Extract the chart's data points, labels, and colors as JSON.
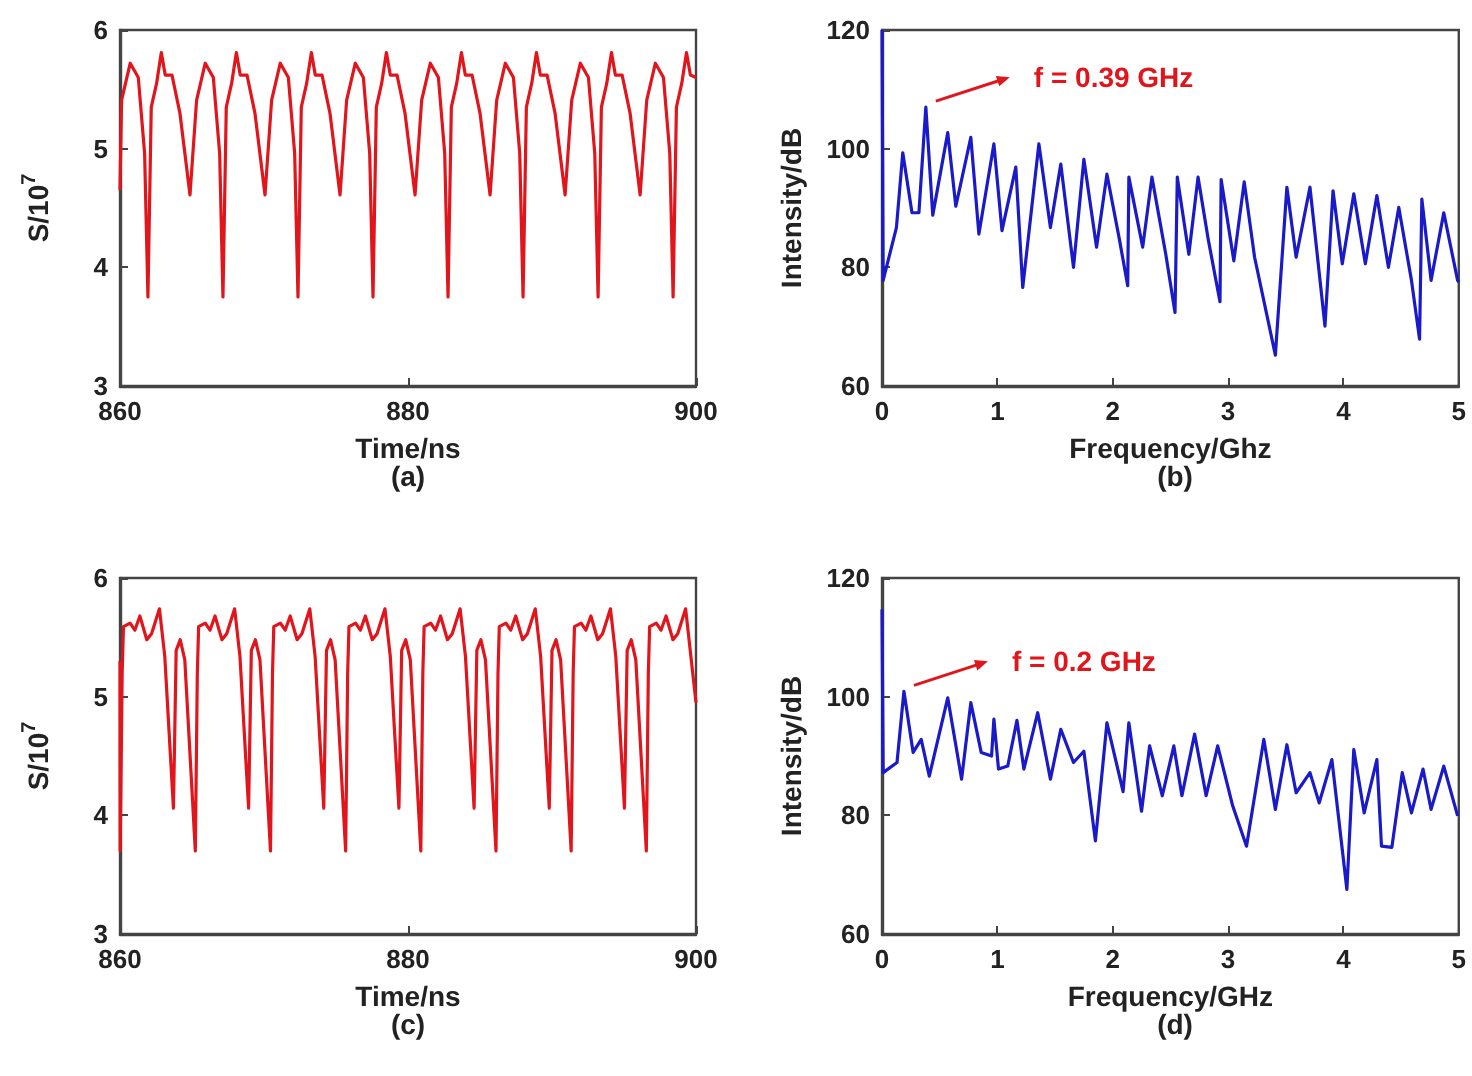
{
  "chart_data": [
    {
      "type": "line",
      "xlabel": "Time/ns",
      "ylabel": "S/10$^{7}$",
      "annotations": [
        "(a)"
      ],
      "xlim": [
        860,
        900
      ],
      "ylim": [
        3,
        6
      ],
      "xticks": [
        860,
        880,
        900
      ],
      "yticks": [
        3,
        4,
        5,
        6
      ],
      "x": [
        860,
        860.11,
        860.71,
        861.27,
        861.71,
        861.94,
        862.17,
        862.54,
        862.87,
        863.14,
        863.61,
        864.16,
        864.86,
        865.32,
        865.92,
        866.48,
        866.92,
        867.15,
        867.38,
        867.75,
        868.08,
        868.35,
        868.82,
        869.37,
        870.07,
        870.53,
        871.13,
        871.69,
        872.13,
        872.36,
        872.59,
        872.96,
        873.29,
        873.56,
        874.03,
        874.58,
        875.28,
        875.74,
        876.34,
        876.9,
        877.34,
        877.57,
        877.8,
        878.17,
        878.5,
        878.77,
        879.24,
        879.79,
        880.49,
        880.95,
        881.55,
        882.11,
        882.55,
        882.78,
        883.01,
        883.38,
        883.71,
        883.98,
        884.45,
        885.0,
        885.7,
        886.16,
        886.76,
        887.32,
        887.76,
        887.99,
        888.22,
        888.59,
        888.92,
        889.19,
        889.66,
        890.21,
        890.91,
        891.37,
        891.97,
        892.53,
        892.97,
        893.2,
        893.43,
        893.8,
        894.13,
        894.4,
        894.87,
        895.42,
        896.12,
        896.58,
        897.18,
        897.74,
        898.18,
        898.41,
        898.64,
        899.01,
        899.34,
        899.61,
        900
      ],
      "series": [
        {
          "color": "#e0161c",
          "values": [
            4.65,
            5.41,
            5.72,
            5.6,
            4.96,
            3.75,
            5.35,
            5.55,
            5.81,
            5.62,
            5.62,
            5.3,
            4.61,
            5.41,
            5.72,
            5.6,
            4.96,
            3.75,
            5.35,
            5.55,
            5.81,
            5.62,
            5.62,
            5.3,
            4.61,
            5.41,
            5.72,
            5.6,
            4.96,
            3.75,
            5.35,
            5.55,
            5.81,
            5.62,
            5.62,
            5.3,
            4.61,
            5.41,
            5.72,
            5.6,
            4.96,
            3.75,
            5.35,
            5.55,
            5.81,
            5.62,
            5.62,
            5.3,
            4.61,
            5.41,
            5.72,
            5.6,
            4.96,
            3.75,
            5.35,
            5.55,
            5.81,
            5.62,
            5.62,
            5.3,
            4.61,
            5.41,
            5.72,
            5.6,
            4.96,
            3.75,
            5.35,
            5.55,
            5.81,
            5.62,
            5.62,
            5.3,
            4.61,
            5.41,
            5.72,
            5.6,
            4.96,
            3.75,
            5.35,
            5.55,
            5.81,
            5.62,
            5.62,
            5.3,
            4.61,
            5.41,
            5.72,
            5.6,
            4.96,
            3.75,
            5.35,
            5.55,
            5.81,
            5.62,
            5.6
          ]
        }
      ]
    },
    {
      "type": "line",
      "xlabel": "Frequency/Ghz",
      "ylabel": "Intensity/dB",
      "annotations": [
        {
          "text": "f = 0.39 GHz",
          "x": 0.38,
          "y": 107
        },
        "(b)"
      ],
      "xlim": [
        0,
        5
      ],
      "ylim": [
        60,
        120
      ],
      "xticks": [
        0,
        1,
        2,
        3,
        4,
        5
      ],
      "yticks": [
        60,
        80,
        100,
        120
      ],
      "x": [
        0,
        0.01,
        0.125,
        0.18,
        0.26,
        0.32,
        0.38,
        0.44,
        0.57,
        0.64,
        0.77,
        0.84,
        0.97,
        1.04,
        1.16,
        1.22,
        1.36,
        1.46,
        1.55,
        1.66,
        1.75,
        1.86,
        1.95,
        2.06,
        2.13,
        2.14,
        2.26,
        2.34,
        2.46,
        2.54,
        2.56,
        2.66,
        2.74,
        2.83,
        2.93,
        2.94,
        3.05,
        3.14,
        3.23,
        3.41,
        3.51,
        3.59,
        3.71,
        3.84,
        3.91,
        3.99,
        4.09,
        4.19,
        4.29,
        4.39,
        4.48,
        4.59,
        4.66,
        4.68,
        4.76,
        4.87,
        4.99,
        5
      ],
      "series": [
        {
          "color": "#1a1ac8",
          "values": [
            120,
            77.8,
            86.7,
            99.3,
            89.2,
            89.2,
            107,
            88.8,
            102.7,
            90.3,
            101.9,
            85.6,
            100.8,
            86.2,
            96.9,
            76.6,
            100.8,
            86.7,
            97.4,
            80.0,
            98.2,
            83.4,
            95.7,
            84.5,
            76.9,
            95.2,
            83.4,
            95.2,
            82.2,
            72.4,
            95.2,
            82.2,
            95.2,
            84.5,
            74.2,
            94.8,
            81.1,
            94.4,
            81.7,
            65.2,
            93.5,
            81.7,
            93.5,
            70.1,
            92.9,
            80.6,
            92.4,
            80.6,
            92.1,
            80.0,
            90.1,
            77.8,
            67.9,
            91.5,
            77.8,
            89.2,
            77.8,
            77.5
          ]
        }
      ]
    },
    {
      "type": "line",
      "xlabel": "Time/ns",
      "ylabel": "S/10$^{7}$",
      "annotations": [
        "(c)"
      ],
      "xlim": [
        860,
        900
      ],
      "ylim": [
        3,
        6
      ],
      "xticks": [
        860,
        880,
        900
      ],
      "yticks": [
        3,
        4,
        5,
        6
      ],
      "x": [
        860,
        860.01,
        860.15,
        860.24,
        860.7,
        861.03,
        861.38,
        861.86,
        862.19,
        862.74,
        863.11,
        863.71,
        863.9,
        864.18,
        864.5,
        865.23,
        865.37,
        865.46,
        865.92,
        866.25,
        866.6,
        867.08,
        867.41,
        867.96,
        868.33,
        868.93,
        869.12,
        869.4,
        869.72,
        870.45,
        870.59,
        870.68,
        871.14,
        871.47,
        871.82,
        872.3,
        872.63,
        873.18,
        873.55,
        874.15,
        874.34,
        874.62,
        874.94,
        875.67,
        875.81,
        875.9,
        876.36,
        876.69,
        877.04,
        877.52,
        877.85,
        878.4,
        878.77,
        879.37,
        879.56,
        879.84,
        880.16,
        880.89,
        881.03,
        881.12,
        881.58,
        881.91,
        882.26,
        882.74,
        883.07,
        883.62,
        883.99,
        884.59,
        884.78,
        885.06,
        885.38,
        886.11,
        886.25,
        886.34,
        886.8,
        887.13,
        887.48,
        887.96,
        888.29,
        888.84,
        889.21,
        889.81,
        890.0,
        890.28,
        890.6,
        891.33,
        891.47,
        891.56,
        892.02,
        892.35,
        892.7,
        893.18,
        893.51,
        894.06,
        894.43,
        895.03,
        895.22,
        895.5,
        895.82,
        896.55,
        896.69,
        896.78,
        897.24,
        897.57,
        897.92,
        898.4,
        898.73,
        899.28,
        900
      ],
      "series": [
        {
          "color": "#e0161c",
          "values": [
            5.3,
            3.7,
            5.2,
            5.59,
            5.62,
            5.56,
            5.68,
            5.48,
            5.53,
            5.74,
            5.34,
            4.06,
            5.39,
            5.48,
            5.31,
            3.7,
            5.2,
            5.59,
            5.62,
            5.56,
            5.68,
            5.48,
            5.53,
            5.74,
            5.34,
            4.06,
            5.39,
            5.48,
            5.31,
            3.7,
            5.2,
            5.59,
            5.62,
            5.56,
            5.68,
            5.48,
            5.53,
            5.74,
            5.34,
            4.06,
            5.39,
            5.48,
            5.31,
            3.7,
            5.2,
            5.59,
            5.62,
            5.56,
            5.68,
            5.48,
            5.53,
            5.74,
            5.34,
            4.06,
            5.39,
            5.48,
            5.31,
            3.7,
            5.2,
            5.59,
            5.62,
            5.56,
            5.68,
            5.48,
            5.53,
            5.74,
            5.34,
            4.06,
            5.39,
            5.48,
            5.31,
            3.7,
            5.2,
            5.59,
            5.62,
            5.56,
            5.68,
            5.48,
            5.53,
            5.74,
            5.34,
            4.06,
            5.39,
            5.48,
            5.31,
            3.7,
            5.2,
            5.59,
            5.62,
            5.56,
            5.68,
            5.48,
            5.53,
            5.74,
            5.34,
            4.06,
            5.39,
            5.48,
            5.31,
            3.7,
            5.2,
            5.59,
            5.62,
            5.56,
            5.68,
            5.48,
            5.53,
            5.74,
            4.95
          ]
        }
      ]
    },
    {
      "type": "line",
      "xlabel": "Frequency/GHz",
      "ylabel": "Intensity/dB",
      "annotations": [
        {
          "text": "f = 0.2 GHz",
          "x": 0.19,
          "y": 100.9
        },
        "(d)"
      ],
      "xlim": [
        0,
        5
      ],
      "ylim": [
        60,
        120
      ],
      "xticks": [
        0,
        1,
        2,
        3,
        4,
        5
      ],
      "yticks": [
        60,
        80,
        100,
        120
      ],
      "x": [
        0,
        0.01,
        0.13,
        0.19,
        0.27,
        0.34,
        0.41,
        0.57,
        0.69,
        0.77,
        0.86,
        0.95,
        0.97,
        1.01,
        1.09,
        1.17,
        1.23,
        1.35,
        1.46,
        1.55,
        1.66,
        1.75,
        1.85,
        1.95,
        2.09,
        2.14,
        2.25,
        2.32,
        2.43,
        2.53,
        2.6,
        2.71,
        2.81,
        2.91,
        3.04,
        3.16,
        3.31,
        3.41,
        3.51,
        3.59,
        3.71,
        3.79,
        3.9,
        4.03,
        4.09,
        4.18,
        4.29,
        4.33,
        4.42,
        4.51,
        4.59,
        4.69,
        4.76,
        4.87,
        4.99,
        5
      ],
      "series": [
        {
          "color": "#1a1ac8",
          "values": [
            114.7,
            87.2,
            88.9,
            100.9,
            90.6,
            92.8,
            86.6,
            99.8,
            86.1,
            99.0,
            90.6,
            90.0,
            96.2,
            87.8,
            88.3,
            96.0,
            87.8,
            97.3,
            86.1,
            94.5,
            88.9,
            90.8,
            75.7,
            95.6,
            84.0,
            95.6,
            80.7,
            91.7,
            83.3,
            91.7,
            83.3,
            93.7,
            83.3,
            91.7,
            81.6,
            74.8,
            92.8,
            81.0,
            91.9,
            83.8,
            87.2,
            82.1,
            89.4,
            67.5,
            91.1,
            80.4,
            89.4,
            74.8,
            74.6,
            87.2,
            80.4,
            87.8,
            81.0,
            88.3,
            79.9,
            79.8
          ]
        }
      ]
    }
  ]
}
